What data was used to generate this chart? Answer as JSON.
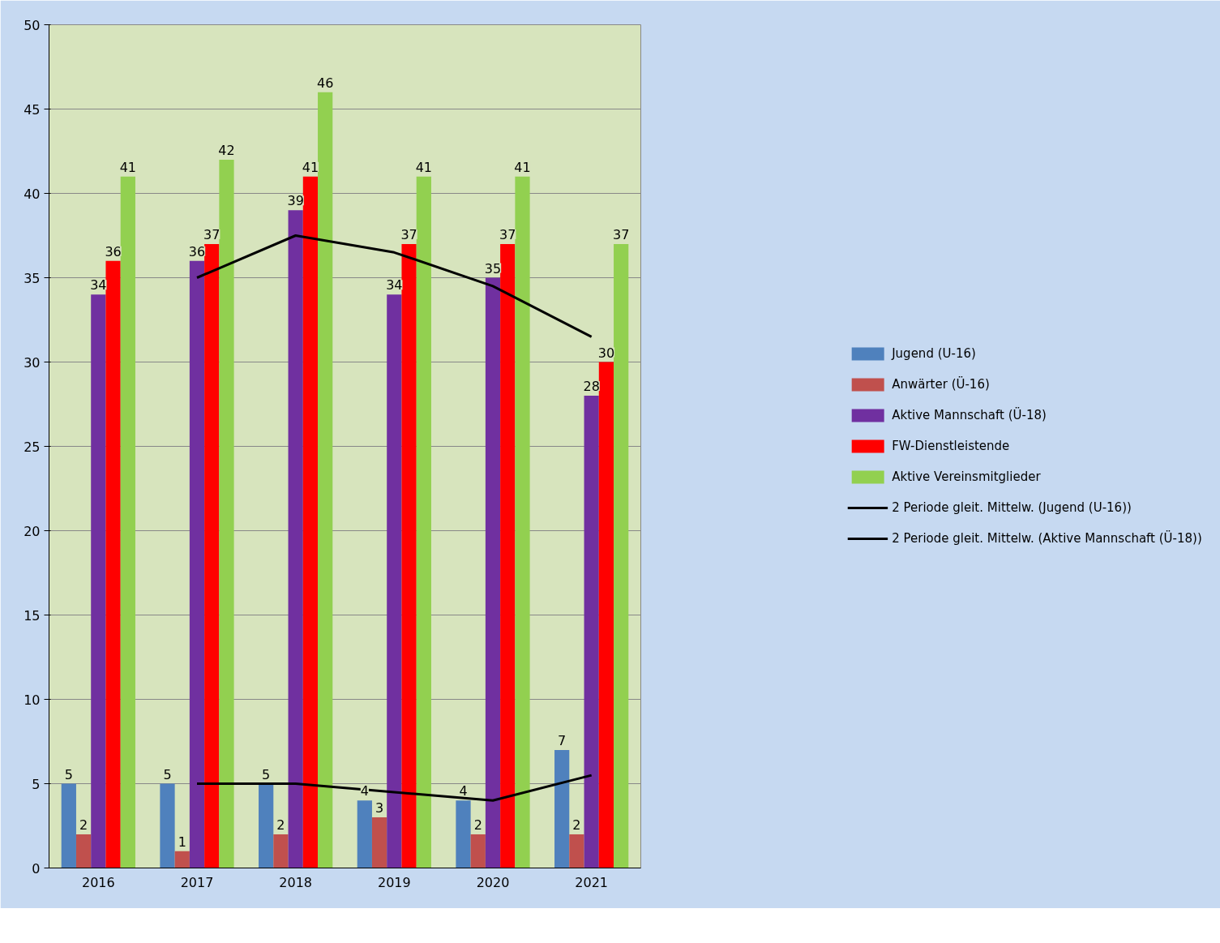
{
  "chart_data": {
    "type": "bar",
    "categories": [
      "2016",
      "2017",
      "2018",
      "2019",
      "2020",
      "2021"
    ],
    "series": [
      {
        "name": "Jugend (U-16)",
        "color": "#4f81bd",
        "values": [
          5,
          5,
          5,
          4,
          4,
          7
        ],
        "value_labels": [
          "5",
          "5",
          "5",
          "4",
          "4",
          "7"
        ]
      },
      {
        "name": "Anwärter (Ü-16)",
        "color": "#c0504d",
        "values": [
          2,
          1,
          2,
          3,
          2,
          2
        ],
        "value_labels": [
          "2",
          "1",
          "2",
          "3",
          "2",
          "2"
        ]
      },
      {
        "name": "Aktive Mannschaft (Ü-18)",
        "color": "#7030a0",
        "values": [
          34,
          36,
          39,
          34,
          35,
          28
        ],
        "value_labels": [
          "34",
          "36",
          "39",
          "34",
          "35",
          "28"
        ]
      },
      {
        "name": "FW-Dienstleistende",
        "color": "#ff0000",
        "values": [
          36,
          37,
          41,
          37,
          37,
          30
        ],
        "value_labels": [
          "36",
          "37",
          "41",
          "37",
          "37",
          "30"
        ]
      },
      {
        "name": "Aktive Vereinsmitglieder",
        "color": "#92d050",
        "values": [
          41,
          42,
          46,
          41,
          41,
          37
        ],
        "value_labels": [
          "41",
          "42",
          "46",
          "41",
          "41",
          "37"
        ]
      },
      {
        "name": "2 Periode gleit. Mittelw. (Jugend (U-16))",
        "type": "line",
        "color": "#000000",
        "values": [
          null,
          5,
          5,
          4.5,
          4,
          5.5
        ]
      },
      {
        "name": "2 Periode gleit. Mittelw. (Aktive Mannschaft (Ü-18))",
        "type": "line",
        "color": "#000000",
        "values": [
          null,
          35,
          37.5,
          36.5,
          34.5,
          31.5
        ]
      }
    ],
    "ylim": [
      0,
      50
    ],
    "yticks": [
      0,
      5,
      10,
      15,
      20,
      25,
      30,
      35,
      40,
      45,
      50
    ],
    "grid": "y",
    "legend": "right",
    "line_style": "solid"
  }
}
